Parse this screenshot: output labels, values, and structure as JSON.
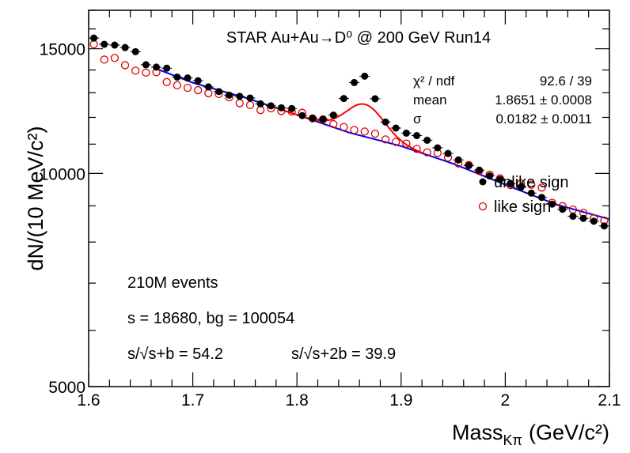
{
  "chart_data": {
    "type": "scatter",
    "title": "STAR Au+Au→D⁰ @ 200 GeV Run14",
    "xlabel": "Mass",
    "xlabel_sub": "Kπ",
    "xlabel_unit": "(GeV/c²)",
    "ylabel": "dN/(10 MeV/c²)",
    "xlim": [
      1.6,
      2.1
    ],
    "ylim": [
      5000,
      17000
    ],
    "x_ticks": [
      {
        "value": 1.6,
        "label": "1.6"
      },
      {
        "value": 1.7,
        "label": "1.7"
      },
      {
        "value": 1.8,
        "label": "1.8"
      },
      {
        "value": 1.9,
        "label": "1.9"
      },
      {
        "value": 2.0,
        "label": "2"
      },
      {
        "value": 2.1,
        "label": "2.1"
      }
    ],
    "y_ticks": [
      {
        "value": 5000,
        "label": "5000"
      },
      {
        "value": 10000,
        "label": "10000"
      },
      {
        "value": 15000,
        "label": "15000"
      }
    ],
    "stats": {
      "rows": [
        {
          "name": "χ² / ndf",
          "value": "92.6 / 39"
        },
        {
          "name": "mean",
          "value": "1.8651 ± 0.0008"
        },
        {
          "name": "σ",
          "value": "0.0182 ± 0.0011"
        }
      ]
    },
    "legend": {
      "placement": "right",
      "entries": [
        "unlike sign",
        "like sign"
      ]
    },
    "annotations": {
      "events": "210M events",
      "counts": "s = 18680,  bg = 100054",
      "signif1_label": "s/√s+b = 54.2",
      "signif2_label": "s/√s+2b = 39.9"
    },
    "series": [
      {
        "name": "unlike sign",
        "marker": "filled-circle",
        "color": "#000000",
        "x": [
          1.605,
          1.615,
          1.625,
          1.635,
          1.645,
          1.655,
          1.665,
          1.675,
          1.685,
          1.695,
          1.705,
          1.715,
          1.725,
          1.735,
          1.745,
          1.755,
          1.765,
          1.775,
          1.785,
          1.795,
          1.805,
          1.815,
          1.825,
          1.835,
          1.845,
          1.855,
          1.865,
          1.875,
          1.885,
          1.895,
          1.905,
          1.915,
          1.925,
          1.935,
          1.945,
          1.955,
          1.965,
          1.975,
          1.985,
          1.995,
          2.005,
          2.015,
          2.025,
          2.035,
          2.045,
          2.055,
          2.065,
          2.075,
          2.085,
          2.095
        ],
        "y": [
          15530,
          15220,
          15180,
          15060,
          14860,
          14240,
          14130,
          14080,
          13680,
          13640,
          13520,
          13250,
          13050,
          12900,
          12850,
          12780,
          12540,
          12460,
          12380,
          12350,
          12070,
          11960,
          11930,
          12090,
          12760,
          13440,
          13720,
          12750,
          11820,
          11590,
          11400,
          11310,
          11140,
          10870,
          10670,
          10450,
          10260,
          10110,
          9920,
          9810,
          9680,
          9560,
          9380,
          9250,
          9050,
          8900,
          8700,
          8640,
          8560,
          8430
        ]
      },
      {
        "name": "like sign",
        "marker": "open-circle",
        "color": "#dd0000",
        "x": [
          1.605,
          1.615,
          1.625,
          1.635,
          1.645,
          1.655,
          1.665,
          1.675,
          1.685,
          1.695,
          1.705,
          1.715,
          1.725,
          1.735,
          1.745,
          1.755,
          1.765,
          1.775,
          1.785,
          1.795,
          1.805,
          1.815,
          1.825,
          1.835,
          1.845,
          1.855,
          1.865,
          1.875,
          1.885,
          1.895,
          1.905,
          1.915,
          1.925,
          1.935,
          1.945,
          1.955,
          1.965,
          1.975,
          1.985,
          1.995,
          2.005,
          2.015,
          2.025,
          2.035,
          2.045,
          2.055,
          2.065,
          2.075,
          2.085,
          2.095
        ],
        "y": [
          15220,
          14480,
          14560,
          14220,
          13970,
          13880,
          13900,
          13460,
          13320,
          13210,
          13110,
          12980,
          12950,
          12810,
          12570,
          12490,
          12290,
          12360,
          12250,
          12230,
          12180,
          11960,
          11920,
          11740,
          11630,
          11520,
          11460,
          11380,
          11170,
          11080,
          11020,
          10830,
          10710,
          10690,
          10530,
          10330,
          10280,
          10080,
          9960,
          9840,
          9630,
          9680,
          9640,
          9550,
          9090,
          8990,
          8890,
          8800,
          8640,
          8580
        ]
      }
    ],
    "fit": {
      "name": "signal + background fit",
      "color": "#ff0000",
      "x_range": [
        1.78,
        1.92
      ],
      "mean": 1.8651,
      "sigma": 0.0182,
      "amplitude": 1250
    },
    "background": {
      "name": "background",
      "color": "#0000ee",
      "x": [
        1.665,
        1.7,
        1.75,
        1.8,
        1.85,
        1.9,
        1.95,
        2.0,
        2.05,
        2.1
      ],
      "y": [
        14060,
        13430,
        12800,
        12100,
        11420,
        10930,
        10320,
        9640,
        9030,
        8620
      ]
    }
  }
}
